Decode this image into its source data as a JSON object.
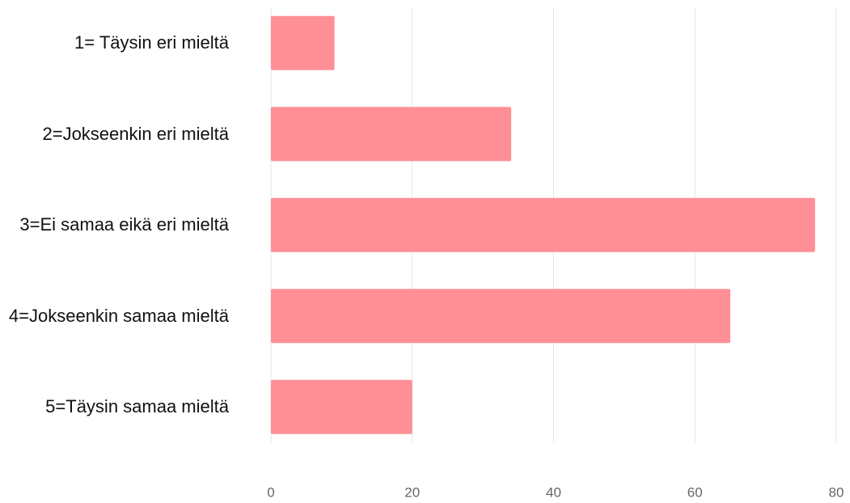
{
  "chart_data": {
    "type": "bar",
    "orientation": "horizontal",
    "categories": [
      "1= Täysin eri mieltä",
      "2=Jokseenkin eri mieltä",
      "3=Ei samaa eikä eri mieltä",
      "4=Jokseenkin samaa mieltä",
      "5=Täysin samaa mieltä"
    ],
    "values": [
      9,
      34,
      77,
      65,
      20
    ],
    "color": "#ff8f96",
    "xlim": [
      0,
      80
    ],
    "xticks": [
      0,
      20,
      40,
      60,
      80
    ],
    "grid": true
  }
}
